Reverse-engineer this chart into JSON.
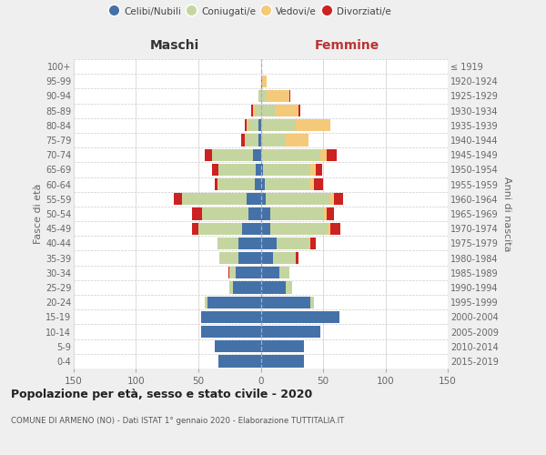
{
  "age_groups": [
    "0-4",
    "5-9",
    "10-14",
    "15-19",
    "20-24",
    "25-29",
    "30-34",
    "35-39",
    "40-44",
    "45-49",
    "50-54",
    "55-59",
    "60-64",
    "65-69",
    "70-74",
    "75-79",
    "80-84",
    "85-89",
    "90-94",
    "95-99",
    "100+"
  ],
  "birth_years": [
    "2015-2019",
    "2010-2014",
    "2005-2009",
    "2000-2004",
    "1995-1999",
    "1990-1994",
    "1985-1989",
    "1980-1984",
    "1975-1979",
    "1970-1974",
    "1965-1969",
    "1960-1964",
    "1955-1959",
    "1950-1954",
    "1945-1949",
    "1940-1944",
    "1935-1939",
    "1930-1934",
    "1925-1929",
    "1920-1924",
    "≤ 1919"
  ],
  "colors": {
    "celibi": "#4472a8",
    "coniugati": "#c5d5a0",
    "vedovi": "#f5c97a",
    "divorziati": "#cc2222"
  },
  "maschi": {
    "celibi": [
      34,
      37,
      48,
      48,
      43,
      22,
      20,
      18,
      18,
      15,
      10,
      11,
      5,
      4,
      6,
      2,
      2,
      0,
      0,
      0,
      0
    ],
    "coniugati": [
      0,
      0,
      0,
      0,
      2,
      3,
      5,
      15,
      17,
      35,
      37,
      52,
      29,
      30,
      33,
      10,
      8,
      5,
      2,
      0,
      0
    ],
    "vedovi": [
      0,
      0,
      0,
      0,
      0,
      0,
      0,
      0,
      0,
      0,
      0,
      0,
      1,
      0,
      0,
      1,
      1,
      1,
      0,
      0,
      0
    ],
    "divorziati": [
      0,
      0,
      0,
      0,
      0,
      0,
      1,
      0,
      0,
      5,
      8,
      7,
      2,
      5,
      6,
      3,
      2,
      2,
      0,
      0,
      0
    ]
  },
  "femmine": {
    "celibi": [
      35,
      35,
      48,
      63,
      40,
      20,
      15,
      10,
      13,
      8,
      8,
      4,
      3,
      2,
      0,
      0,
      0,
      0,
      0,
      1,
      0
    ],
    "coniugati": [
      0,
      0,
      0,
      0,
      3,
      5,
      8,
      18,
      26,
      46,
      43,
      52,
      36,
      38,
      48,
      20,
      28,
      12,
      5,
      0,
      0
    ],
    "vedovi": [
      0,
      0,
      0,
      0,
      0,
      0,
      0,
      0,
      1,
      2,
      2,
      3,
      4,
      4,
      5,
      18,
      28,
      18,
      18,
      4,
      1
    ],
    "divorziati": [
      0,
      0,
      0,
      0,
      0,
      0,
      0,
      2,
      4,
      8,
      6,
      7,
      7,
      5,
      8,
      0,
      0,
      2,
      1,
      0,
      0
    ]
  },
  "xlim": 150,
  "xticks": [
    -150,
    -100,
    -50,
    0,
    50,
    100,
    150
  ],
  "title": "Popolazione per età, sesso e stato civile - 2020",
  "subtitle": "COMUNE DI ARMENO (NO) - Dati ISTAT 1° gennaio 2020 - Elaborazione TUTTITALIA.IT",
  "ylabel": "Fasce di età",
  "ylabel_right": "Anni di nascita",
  "xlabel_maschi": "Maschi",
  "xlabel_femmine": "Femmine",
  "legend_labels": [
    "Celibi/Nubili",
    "Coniugati/e",
    "Vedovi/e",
    "Divorziati/e"
  ],
  "bg_color": "#efefef",
  "plot_bg": "#ffffff",
  "grid_color": "#cccccc"
}
